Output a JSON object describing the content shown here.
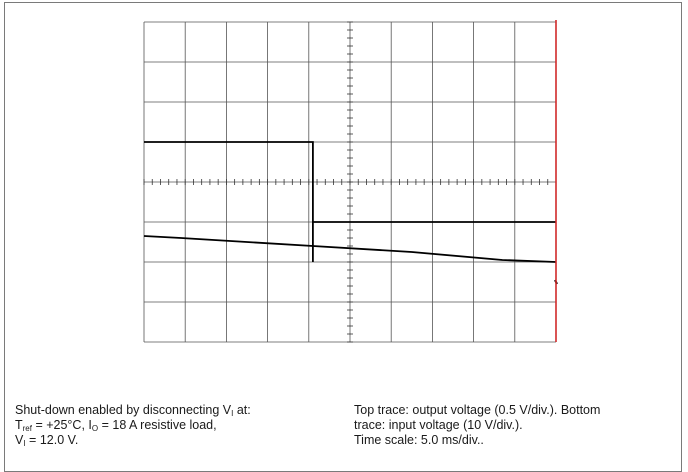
{
  "chart_data": {
    "type": "line",
    "title": "",
    "grid": true,
    "divisions": {
      "x": 10,
      "y": 8
    },
    "x_units": "div",
    "y_units": "div",
    "xlim": [
      0,
      10
    ],
    "ylim": [
      0,
      8
    ],
    "series": [
      {
        "name": "Top trace: output voltage (0.5 V/div.)",
        "x": [
          0,
          4.1,
          4.1,
          4.1,
          10
        ],
        "y": [
          5.0,
          5.0,
          2.0,
          3.0,
          3.0
        ]
      },
      {
        "name": "Bottom trace: input voltage (10 V/div.)",
        "x": [
          0,
          0.9,
          4.1,
          6.5,
          8.7,
          10
        ],
        "y": [
          2.65,
          2.6,
          2.4,
          2.25,
          2.05,
          2.0
        ]
      }
    ],
    "marker": {
      "x": 10,
      "color": "#d12a2a"
    }
  },
  "caption_left": {
    "l1_a": "Shut-down enabled by disconnecting V",
    "l1_sub": "I",
    "l1_b": " at:",
    "l2_a": "T",
    "l2_sub1": "ref",
    "l2_b": " = +25°C, I",
    "l2_sub2": "O",
    "l2_c": " = 18 A resistive load,",
    "l3_a": "V",
    "l3_sub": "I",
    "l3_b": " = 12.0 V."
  },
  "caption_right": {
    "l1": "Top trace: output voltage (0.5 V/div.). Bottom",
    "l2": "trace: input voltage (10 V/div.).",
    "l3": "Time scale: 5.0 ms/div.."
  }
}
